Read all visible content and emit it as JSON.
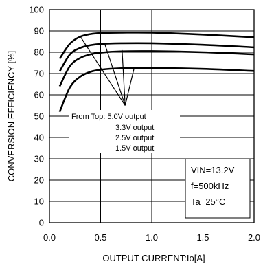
{
  "chart_data": {
    "type": "line",
    "xlabel": "OUTPUT CURRENT:Io[A]",
    "ylabel": "CONVERSION EFFICIENCY [%]",
    "xlim": [
      0,
      2.0
    ],
    "ylim": [
      0,
      100
    ],
    "x_ticks": [
      "0.0",
      "0.5",
      "1.0",
      "1.5",
      "2.0"
    ],
    "y_ticks": [
      "0",
      "10",
      "20",
      "30",
      "40",
      "50",
      "60",
      "70",
      "80",
      "90",
      "100"
    ],
    "grid": true,
    "series": [
      {
        "name": "5.0V output",
        "x": [
          0.1,
          0.2,
          0.3,
          0.4,
          0.5,
          0.7,
          1.0,
          1.5,
          2.0
        ],
        "y": [
          77,
          84,
          87.3,
          88.5,
          89,
          89.2,
          89.2,
          88.3,
          87
        ]
      },
      {
        "name": "3.3V output",
        "x": [
          0.1,
          0.2,
          0.3,
          0.4,
          0.5,
          0.7,
          1.0,
          1.5,
          2.0
        ],
        "y": [
          71,
          79,
          82,
          83.3,
          83.9,
          84.2,
          84.2,
          83.5,
          82.3
        ]
      },
      {
        "name": "2.5V output",
        "x": [
          0.1,
          0.2,
          0.3,
          0.4,
          0.5,
          0.7,
          1.0,
          1.5,
          2.0
        ],
        "y": [
          64,
          73.5,
          77.3,
          79,
          79.8,
          80.4,
          80.5,
          80,
          79
        ]
      },
      {
        "name": "1.5V output",
        "x": [
          0.1,
          0.2,
          0.3,
          0.4,
          0.5,
          0.7,
          1.0,
          1.5,
          2.0
        ],
        "y": [
          52,
          63.5,
          68.5,
          70.8,
          71.8,
          72.5,
          72.6,
          72.2,
          71.2
        ]
      }
    ],
    "annotations": {
      "prefix": "From Top: ",
      "labels": [
        "5.0V output",
        "3.3V output",
        "2.5V output",
        "1.5V output"
      ],
      "pointer_origin": [
        0.74,
        55
      ],
      "pointer_targets": [
        [
          0.3,
          87.5
        ],
        [
          0.54,
          84
        ],
        [
          0.71,
          81
        ],
        [
          0.83,
          73
        ]
      ]
    },
    "conditions": [
      "VIN=13.2V",
      "f=500kHz",
      "Ta=25°C"
    ]
  }
}
